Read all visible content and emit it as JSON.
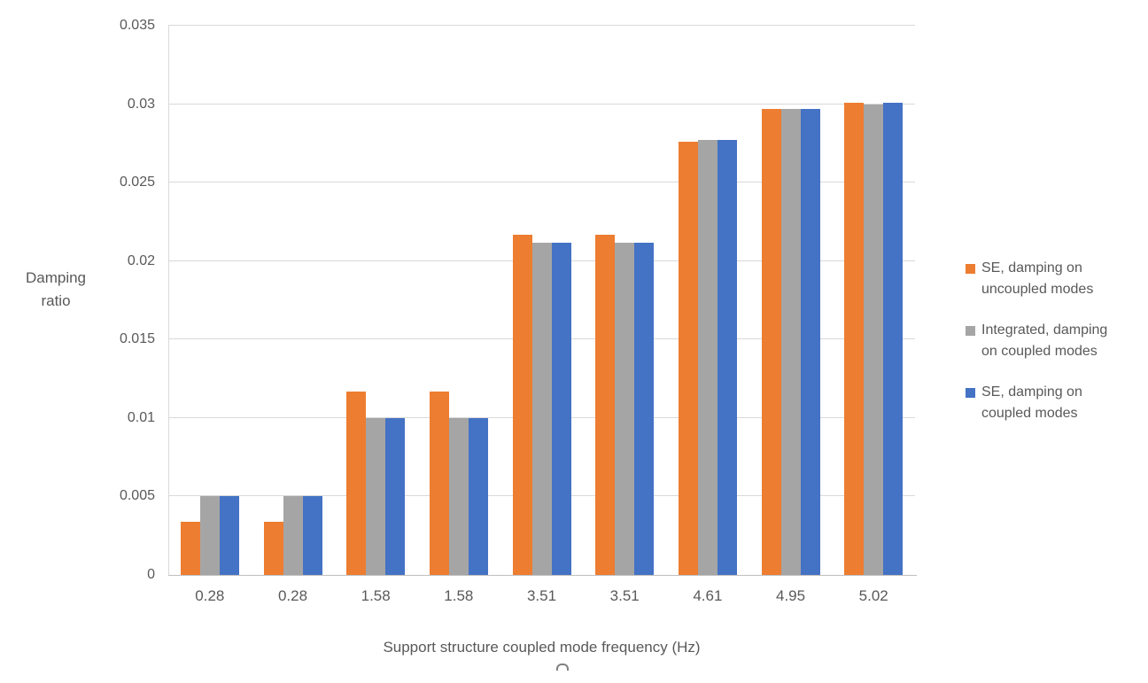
{
  "chart_data": {
    "type": "bar",
    "title": "",
    "xlabel": "Support structure coupled mode frequency (Hz)",
    "ylabel": "Damping ratio",
    "categories": [
      "0.28",
      "0.28",
      "1.58",
      "1.58",
      "3.51",
      "3.51",
      "4.61",
      "4.95",
      "5.02"
    ],
    "series": [
      {
        "name": "SE, damping on uncoupled modes",
        "color": "#ED7D31",
        "values": [
          0.0034,
          0.0034,
          0.0117,
          0.0117,
          0.0217,
          0.0217,
          0.0276,
          0.0297,
          0.0301
        ]
      },
      {
        "name": "Integrated, damping on coupled modes",
        "color": "#A5A5A5",
        "values": [
          0.005,
          0.005,
          0.01,
          0.01,
          0.0212,
          0.0212,
          0.0277,
          0.0297,
          0.03
        ]
      },
      {
        "name": "SE, damping on coupled modes",
        "color": "#4472C4",
        "values": [
          0.005,
          0.005,
          0.01,
          0.01,
          0.0212,
          0.0212,
          0.0277,
          0.0297,
          0.0301
        ]
      }
    ],
    "ylim": [
      0,
      0.035
    ],
    "yticks": [
      "0",
      "0.005",
      "0.01",
      "0.015",
      "0.02",
      "0.025",
      "0.03",
      "0.035"
    ],
    "grid": true,
    "legend_position": "right"
  },
  "colors": {
    "gridline": "#d9d9d9",
    "axis_line": "#bfbfbf",
    "text": "#595959"
  }
}
